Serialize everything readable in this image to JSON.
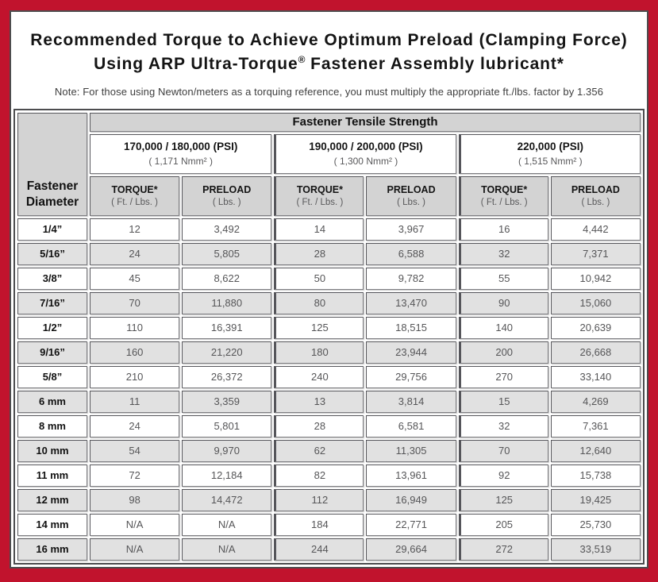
{
  "title": {
    "line1": "Recommended Torque to Achieve Optimum Preload (Clamping Force)",
    "line2_pre": "Using ARP Ultra-Torque",
    "line2_reg": "®",
    "line2_post": " Fastener Assembly lubricant*",
    "note": "Note: For those using Newton/meters as a torquing reference, you must multiply the appropriate ft./lbs. factor by 1.356"
  },
  "table": {
    "corner_line1": "Fastener",
    "corner_line2": "Diameter",
    "tensile_header": "Fastener Tensile Strength",
    "groups": [
      {
        "psi": "170,000 / 180,000 (PSI)",
        "nmm": "( 1,171 Nmm² )"
      },
      {
        "psi": "190,000 / 200,000 (PSI)",
        "nmm": "( 1,300 Nmm² )"
      },
      {
        "psi": "220,000 (PSI)",
        "nmm": "( 1,515 Nmm² )"
      }
    ],
    "col_headers": {
      "torque_label": "TORQUE*",
      "torque_unit": "( Ft. / Lbs. )",
      "preload_label": "PRELOAD",
      "preload_unit": "( Lbs. )"
    },
    "rows": [
      {
        "dia": "1/4”",
        "values": [
          "12",
          "3,492",
          "14",
          "3,967",
          "16",
          "4,442"
        ]
      },
      {
        "dia": "5/16”",
        "values": [
          "24",
          "5,805",
          "28",
          "6,588",
          "32",
          "7,371"
        ]
      },
      {
        "dia": "3/8”",
        "values": [
          "45",
          "8,622",
          "50",
          "9,782",
          "55",
          "10,942"
        ]
      },
      {
        "dia": "7/16”",
        "values": [
          "70",
          "11,880",
          "80",
          "13,470",
          "90",
          "15,060"
        ]
      },
      {
        "dia": "1/2”",
        "values": [
          "110",
          "16,391",
          "125",
          "18,515",
          "140",
          "20,639"
        ]
      },
      {
        "dia": "9/16”",
        "values": [
          "160",
          "21,220",
          "180",
          "23,944",
          "200",
          "26,668"
        ]
      },
      {
        "dia": "5/8”",
        "values": [
          "210",
          "26,372",
          "240",
          "29,756",
          "270",
          "33,140"
        ]
      },
      {
        "dia": "6 mm",
        "values": [
          "11",
          "3,359",
          "13",
          "3,814",
          "15",
          "4,269"
        ]
      },
      {
        "dia": "8 mm",
        "values": [
          "24",
          "5,801",
          "28",
          "6,581",
          "32",
          "7,361"
        ]
      },
      {
        "dia": "10 mm",
        "values": [
          "54",
          "9,970",
          "62",
          "11,305",
          "70",
          "12,640"
        ]
      },
      {
        "dia": "11 mm",
        "values": [
          "72",
          "12,184",
          "82",
          "13,961",
          "92",
          "15,738"
        ]
      },
      {
        "dia": "12 mm",
        "values": [
          "98",
          "14,472",
          "112",
          "16,949",
          "125",
          "19,425"
        ]
      },
      {
        "dia": "14 mm",
        "values": [
          "N/A",
          "N/A",
          "184",
          "22,771",
          "205",
          "25,730"
        ]
      },
      {
        "dia": "16 mm",
        "values": [
          "N/A",
          "N/A",
          "244",
          "29,664",
          "272",
          "33,519"
        ]
      }
    ]
  },
  "colors": {
    "frame_red": "#c1132d",
    "header_gray": "#d3d3d3",
    "alt_row_gray": "#e1e1e1",
    "border_dark": "#4d4d4f"
  }
}
